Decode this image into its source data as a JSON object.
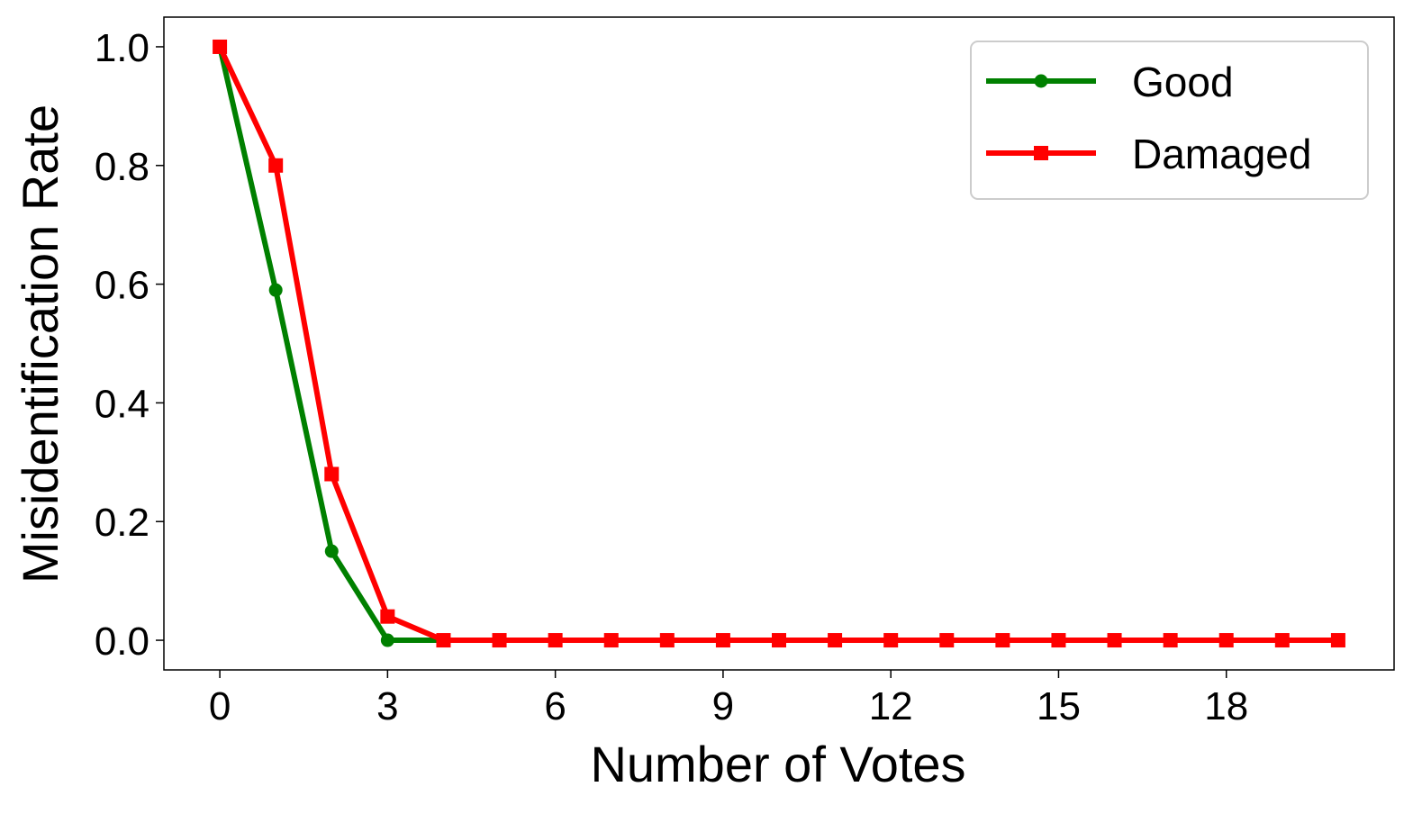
{
  "chart_data": {
    "type": "line",
    "title": "",
    "xlabel": "Number of Votes",
    "ylabel": "Misidentification Rate",
    "xlim": [
      -1,
      21
    ],
    "ylim": [
      -0.05,
      1.05
    ],
    "xticks": [
      0,
      3,
      6,
      9,
      12,
      15,
      18
    ],
    "xtick_labels": [
      "0",
      "3",
      "6",
      "9",
      "12",
      "15",
      "18"
    ],
    "yticks": [
      0.0,
      0.2,
      0.4,
      0.6,
      0.8,
      1.0
    ],
    "ytick_labels": [
      "0.0",
      "0.2",
      "0.4",
      "0.6",
      "0.8",
      "1.0"
    ],
    "grid": false,
    "legend_position": "top-right",
    "x": [
      0,
      1,
      2,
      3,
      4,
      5,
      6,
      7,
      8,
      9,
      10,
      11,
      12,
      13,
      14,
      15,
      16,
      17,
      18,
      19,
      20
    ],
    "series": [
      {
        "name": "Good",
        "color": "#008000",
        "marker": "circle",
        "values": [
          1.0,
          0.59,
          0.15,
          0.0,
          0.0,
          0.0,
          0.0,
          0.0,
          0.0,
          0.0,
          0.0,
          0.0,
          0.0,
          0.0,
          0.0,
          0.0,
          0.0,
          0.0,
          0.0,
          0.0,
          0.0
        ]
      },
      {
        "name": "Damaged",
        "color": "#ff0000",
        "marker": "square",
        "values": [
          1.0,
          0.8,
          0.28,
          0.04,
          0.0,
          0.0,
          0.0,
          0.0,
          0.0,
          0.0,
          0.0,
          0.0,
          0.0,
          0.0,
          0.0,
          0.0,
          0.0,
          0.0,
          0.0,
          0.0,
          0.0
        ]
      }
    ]
  }
}
